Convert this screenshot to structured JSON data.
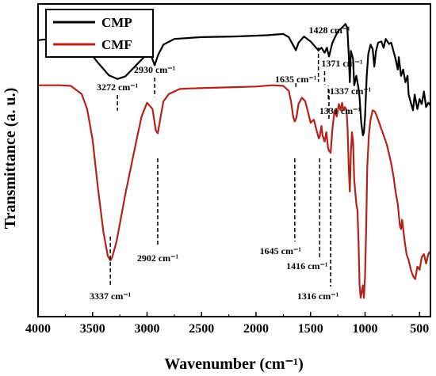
{
  "chart_data": {
    "type": "line",
    "xlabel": "Wavenumber (cm⁻¹)",
    "ylabel": "Transmittance (a. u.)",
    "xlim": [
      4000,
      400
    ],
    "x_reversed": true,
    "xticks": [
      4000,
      3500,
      3000,
      2500,
      2000,
      1500,
      1000,
      500
    ],
    "yticks_shown": false,
    "grid": false,
    "legend_position": "top-left",
    "series": [
      {
        "name": "CMP",
        "color": "#000000",
        "points": [
          [
            4000,
            72.2
          ],
          [
            3800,
            72.6
          ],
          [
            3650,
            71.9
          ],
          [
            3550,
            70.8
          ],
          [
            3450,
            68.6
          ],
          [
            3350,
            66.6
          ],
          [
            3272,
            66.0
          ],
          [
            3200,
            66.4
          ],
          [
            3100,
            68.2
          ],
          [
            3000,
            70.0
          ],
          [
            2960,
            69.6
          ],
          [
            2930,
            68.2
          ],
          [
            2900,
            69.8
          ],
          [
            2850,
            71.5
          ],
          [
            2750,
            72.4
          ],
          [
            2500,
            72.7
          ],
          [
            2200,
            72.8
          ],
          [
            1900,
            73.0
          ],
          [
            1750,
            73.2
          ],
          [
            1700,
            72.7
          ],
          [
            1660,
            71.4
          ],
          [
            1635,
            70.6
          ],
          [
            1610,
            71.8
          ],
          [
            1560,
            72.8
          ],
          [
            1500,
            72.0
          ],
          [
            1460,
            71.2
          ],
          [
            1428,
            70.6
          ],
          [
            1400,
            71.0
          ],
          [
            1371,
            70.2
          ],
          [
            1350,
            71.0
          ],
          [
            1337,
            70.0
          ],
          [
            1331,
            69.6
          ],
          [
            1300,
            71.8
          ],
          [
            1250,
            73.6
          ],
          [
            1200,
            74.4
          ],
          [
            1180,
            74.8
          ],
          [
            1163,
            74.2
          ],
          [
            1150,
            70.0
          ],
          [
            1140,
            65.5
          ],
          [
            1130,
            70.5
          ],
          [
            1110,
            69.2
          ],
          [
            1100,
            65.0
          ],
          [
            1080,
            66.5
          ],
          [
            1060,
            64.5
          ],
          [
            1050,
            63.0
          ],
          [
            1035,
            59.0
          ],
          [
            1020,
            57.0
          ],
          [
            1010,
            57.5
          ],
          [
            1000,
            60.0
          ],
          [
            985,
            66.5
          ],
          [
            970,
            70.0
          ],
          [
            950,
            71.5
          ],
          [
            930,
            70.8
          ],
          [
            915,
            68.0
          ],
          [
            900,
            70.5
          ],
          [
            880,
            71.8
          ],
          [
            850,
            72.0
          ],
          [
            830,
            71.0
          ],
          [
            810,
            72.4
          ],
          [
            780,
            71.6
          ],
          [
            760,
            71.8
          ],
          [
            740,
            70.5
          ],
          [
            720,
            69.2
          ],
          [
            700,
            67.5
          ],
          [
            690,
            69.5
          ],
          [
            670,
            66.5
          ],
          [
            650,
            67.5
          ],
          [
            630,
            65.5
          ],
          [
            610,
            66.5
          ],
          [
            600,
            63.5
          ],
          [
            580,
            62.2
          ],
          [
            560,
            61.0
          ],
          [
            545,
            63.5
          ],
          [
            520,
            61.2
          ],
          [
            500,
            62.8
          ],
          [
            480,
            62.0
          ],
          [
            460,
            64.0
          ],
          [
            440,
            61.5
          ],
          [
            420,
            62.2
          ],
          [
            400,
            61.8
          ]
        ]
      },
      {
        "name": "CMF",
        "color": "#b4221b",
        "points": [
          [
            4000,
            65.0
          ],
          [
            3800,
            65.0
          ],
          [
            3700,
            64.9
          ],
          [
            3600,
            63.6
          ],
          [
            3550,
            61.2
          ],
          [
            3500,
            56.3
          ],
          [
            3450,
            48.5
          ],
          [
            3400,
            41.5
          ],
          [
            3360,
            37.7
          ],
          [
            3337,
            37.0
          ],
          [
            3320,
            37.5
          ],
          [
            3280,
            40.0
          ],
          [
            3200,
            47.5
          ],
          [
            3100,
            56.0
          ],
          [
            3050,
            60.0
          ],
          [
            3000,
            62.2
          ],
          [
            2950,
            61.2
          ],
          [
            2920,
            57.8
          ],
          [
            2902,
            57.3
          ],
          [
            2880,
            59.5
          ],
          [
            2850,
            62.4
          ],
          [
            2800,
            63.6
          ],
          [
            2700,
            64.4
          ],
          [
            2600,
            64.5
          ],
          [
            2400,
            64.6
          ],
          [
            2200,
            64.7
          ],
          [
            2000,
            64.8
          ],
          [
            1850,
            65.0
          ],
          [
            1750,
            64.9
          ],
          [
            1700,
            64.1
          ],
          [
            1680,
            62.5
          ],
          [
            1660,
            60.0
          ],
          [
            1645,
            59.2
          ],
          [
            1630,
            59.8
          ],
          [
            1610,
            62.0
          ],
          [
            1580,
            63.0
          ],
          [
            1550,
            62.5
          ],
          [
            1520,
            60.5
          ],
          [
            1500,
            59.0
          ],
          [
            1470,
            59.5
          ],
          [
            1440,
            57.5
          ],
          [
            1425,
            56.5
          ],
          [
            1416,
            56.8
          ],
          [
            1400,
            58.5
          ],
          [
            1390,
            57.0
          ],
          [
            1371,
            56.0
          ],
          [
            1355,
            57.5
          ],
          [
            1340,
            55.0
          ],
          [
            1330,
            54.5
          ],
          [
            1316,
            54.2
          ],
          [
            1300,
            58.0
          ],
          [
            1280,
            61.0
          ],
          [
            1260,
            60.0
          ],
          [
            1240,
            62.0
          ],
          [
            1225,
            61.0
          ],
          [
            1210,
            62.2
          ],
          [
            1200,
            61.0
          ],
          [
            1185,
            61.5
          ],
          [
            1170,
            61.0
          ],
          [
            1160,
            58.0
          ],
          [
            1150,
            52.0
          ],
          [
            1140,
            48.0
          ],
          [
            1130,
            54.0
          ],
          [
            1120,
            57.5
          ],
          [
            1110,
            56.0
          ],
          [
            1100,
            50.0
          ],
          [
            1090,
            48.0
          ],
          [
            1080,
            46.0
          ],
          [
            1070,
            45.0
          ],
          [
            1060,
            40.0
          ],
          [
            1050,
            33.0
          ],
          [
            1040,
            31.0
          ],
          [
            1030,
            32.0
          ],
          [
            1020,
            33.0
          ],
          [
            1010,
            31.0
          ],
          [
            1000,
            34.5
          ],
          [
            990,
            42.0
          ],
          [
            980,
            52.0
          ],
          [
            965,
            57.0
          ],
          [
            950,
            59.5
          ],
          [
            930,
            61.0
          ],
          [
            910,
            60.8
          ],
          [
            880,
            59.5
          ],
          [
            850,
            58.0
          ],
          [
            820,
            56.5
          ],
          [
            800,
            55.5
          ],
          [
            780,
            54.0
          ],
          [
            760,
            52.5
          ],
          [
            740,
            50.5
          ],
          [
            720,
            48.0
          ],
          [
            700,
            46.0
          ],
          [
            680,
            42.5
          ],
          [
            670,
            42.0
          ],
          [
            660,
            43.5
          ],
          [
            640,
            40.5
          ],
          [
            620,
            38.0
          ],
          [
            600,
            37.0
          ],
          [
            580,
            35.5
          ],
          [
            560,
            34.5
          ],
          [
            540,
            34.0
          ],
          [
            520,
            36.0
          ],
          [
            500,
            35.5
          ],
          [
            480,
            37.5
          ],
          [
            460,
            38.0
          ],
          [
            440,
            36.5
          ],
          [
            420,
            38.0
          ],
          [
            400,
            38.5
          ]
        ]
      }
    ],
    "annotations": [
      {
        "label": "3272 cm⁻¹",
        "wn": 3272,
        "series": "CMP",
        "position": "above"
      },
      {
        "label": "2930 cm⁻¹",
        "wn": 2930,
        "series": "CMP",
        "position": "above"
      },
      {
        "label": "1635 cm⁻¹",
        "wn": 1635,
        "series": "CMP",
        "position": "above"
      },
      {
        "label": "1428 cm⁻¹",
        "wn": 1428,
        "series": "CMP",
        "position": "above"
      },
      {
        "label": "1371 cm⁻¹",
        "wn": 1371,
        "series": "CMP",
        "position": "above"
      },
      {
        "label": "1337 cm⁻¹",
        "wn": 1337,
        "series": "CMP",
        "position": "above"
      },
      {
        "label": "1331 cm⁻¹",
        "wn": 1331,
        "series": "CMP",
        "position": "above"
      },
      {
        "label": "3337 cm⁻¹",
        "wn": 3337,
        "series": "CMF",
        "position": "below"
      },
      {
        "label": "2902 cm⁻¹",
        "wn": 2902,
        "series": "CMF",
        "position": "below"
      },
      {
        "label": "1645 cm⁻¹",
        "wn": 1645,
        "series": "CMF",
        "position": "below"
      },
      {
        "label": "1416 cm⁻¹",
        "wn": 1416,
        "series": "CMF",
        "position": "below"
      },
      {
        "label": "1316 cm⁻¹",
        "wn": 1316,
        "series": "CMF",
        "position": "below"
      }
    ]
  }
}
